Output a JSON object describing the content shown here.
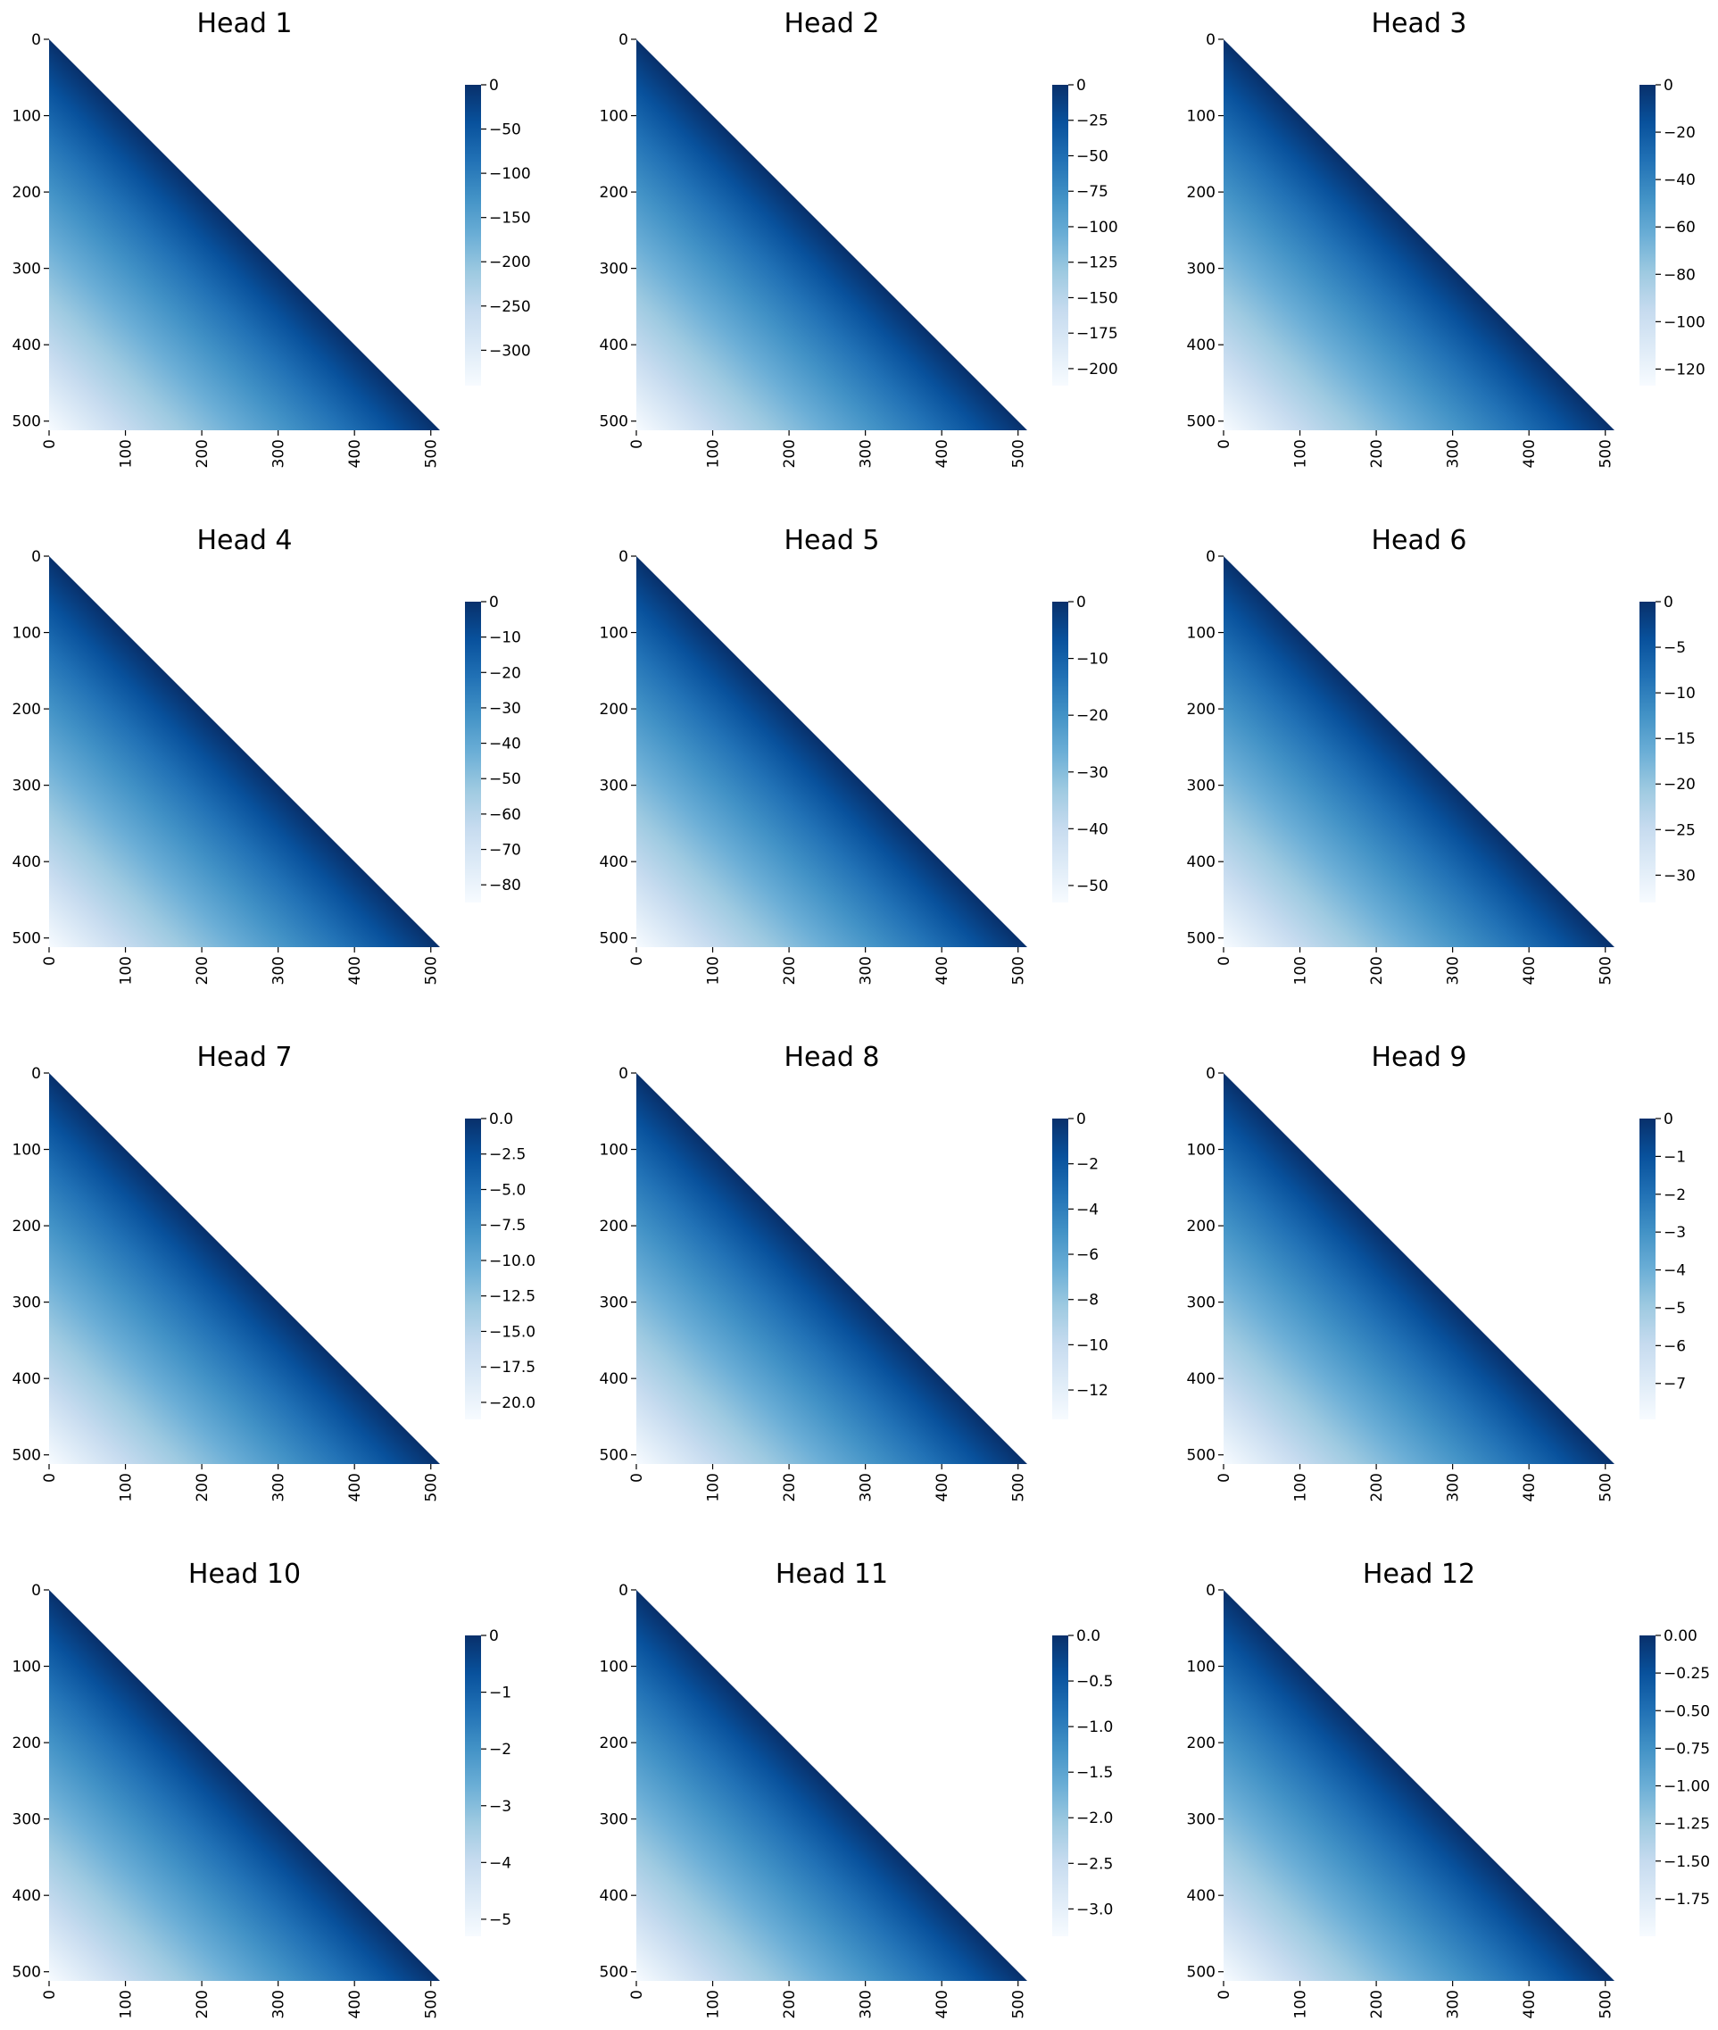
{
  "chart_data": {
    "type": "heatmap",
    "layout": "4x3 grid",
    "colormap": "Blues_r",
    "grid": false,
    "shape": "lower-triangular",
    "x_ticks": [
      0,
      100,
      200,
      300,
      400,
      500
    ],
    "y_ticks": [
      0,
      100,
      200,
      300,
      400,
      500
    ],
    "xlim": [
      0,
      512
    ],
    "ylim": [
      0,
      512
    ],
    "panels": [
      {
        "title": "Head 1",
        "vmin": -340,
        "vmax": 0,
        "colorbar_ticks": [
          "0",
          "−50",
          "−100",
          "−150",
          "−200",
          "−250",
          "−300"
        ],
        "colorbar_values": [
          0,
          -50,
          -100,
          -150,
          -200,
          -250,
          -300
        ]
      },
      {
        "title": "Head 2",
        "vmin": -212,
        "vmax": 0,
        "colorbar_ticks": [
          "0",
          "−25",
          "−50",
          "−75",
          "−100",
          "−125",
          "−150",
          "−175",
          "−200"
        ],
        "colorbar_values": [
          0,
          -25,
          -50,
          -75,
          -100,
          -125,
          -150,
          -175,
          -200
        ]
      },
      {
        "title": "Head 3",
        "vmin": -127,
        "vmax": 0,
        "colorbar_ticks": [
          "0",
          "−20",
          "−40",
          "−60",
          "−80",
          "−100",
          "−120"
        ],
        "colorbar_values": [
          0,
          -20,
          -40,
          -60,
          -80,
          -100,
          -120
        ]
      },
      {
        "title": "Head 4",
        "vmin": -85,
        "vmax": 0,
        "colorbar_ticks": [
          "0",
          "−10",
          "−20",
          "−30",
          "−40",
          "−50",
          "−60",
          "−70",
          "−80"
        ],
        "colorbar_values": [
          0,
          -10,
          -20,
          -30,
          -40,
          -50,
          -60,
          -70,
          -80
        ]
      },
      {
        "title": "Head 5",
        "vmin": -53,
        "vmax": 0,
        "colorbar_ticks": [
          "0",
          "−10",
          "−20",
          "−30",
          "−40",
          "−50"
        ],
        "colorbar_values": [
          0,
          -10,
          -20,
          -30,
          -40,
          -50
        ]
      },
      {
        "title": "Head 6",
        "vmin": -33,
        "vmax": 0,
        "colorbar_ticks": [
          "0",
          "−5",
          "−10",
          "−15",
          "−20",
          "−25",
          "−30"
        ],
        "colorbar_values": [
          0,
          -5,
          -10,
          -15,
          -20,
          -25,
          -30
        ]
      },
      {
        "title": "Head 7",
        "vmin": -21.2,
        "vmax": 0,
        "colorbar_ticks": [
          "0.0",
          "−2.5",
          "−5.0",
          "−7.5",
          "−10.0",
          "−12.5",
          "−15.0",
          "−17.5",
          "−20.0"
        ],
        "colorbar_values": [
          0,
          -2.5,
          -5,
          -7.5,
          -10,
          -12.5,
          -15,
          -17.5,
          -20
        ]
      },
      {
        "title": "Head 8",
        "vmin": -13.3,
        "vmax": 0,
        "colorbar_ticks": [
          "0",
          "−2",
          "−4",
          "−6",
          "−8",
          "−10",
          "−12"
        ],
        "colorbar_values": [
          0,
          -2,
          -4,
          -6,
          -8,
          -10,
          -12
        ]
      },
      {
        "title": "Head 9",
        "vmin": -7.95,
        "vmax": 0,
        "colorbar_ticks": [
          "0",
          "−1",
          "−2",
          "−3",
          "−4",
          "−5",
          "−6",
          "−7"
        ],
        "colorbar_values": [
          0,
          -1,
          -2,
          -3,
          -4,
          -5,
          -6,
          -7
        ]
      },
      {
        "title": "Head 10",
        "vmin": -5.3,
        "vmax": 0,
        "colorbar_ticks": [
          "0",
          "−1",
          "−2",
          "−3",
          "−4",
          "−5"
        ],
        "colorbar_values": [
          0,
          -1,
          -2,
          -3,
          -4,
          -5
        ]
      },
      {
        "title": "Head 11",
        "vmin": -3.3,
        "vmax": 0,
        "colorbar_ticks": [
          "0.0",
          "−0.5",
          "−1.0",
          "−1.5",
          "−2.0",
          "−2.5",
          "−3.0"
        ],
        "colorbar_values": [
          0,
          -0.5,
          -1,
          -1.5,
          -2,
          -2.5,
          -3
        ]
      },
      {
        "title": "Head 12",
        "vmin": -2.0,
        "vmax": 0,
        "colorbar_ticks": [
          "0.00",
          "−0.25",
          "−0.50",
          "−0.75",
          "−1.00",
          "−1.25",
          "−1.50",
          "−1.75"
        ],
        "colorbar_values": [
          0,
          -0.25,
          -0.5,
          -0.75,
          -1,
          -1.25,
          -1.5,
          -1.75
        ]
      }
    ]
  },
  "colors": {
    "blues_dark": "#08306b",
    "blues_mid": "#2171b5",
    "blues_light": "#c6dbef",
    "blues_white": "#f7fbff"
  }
}
